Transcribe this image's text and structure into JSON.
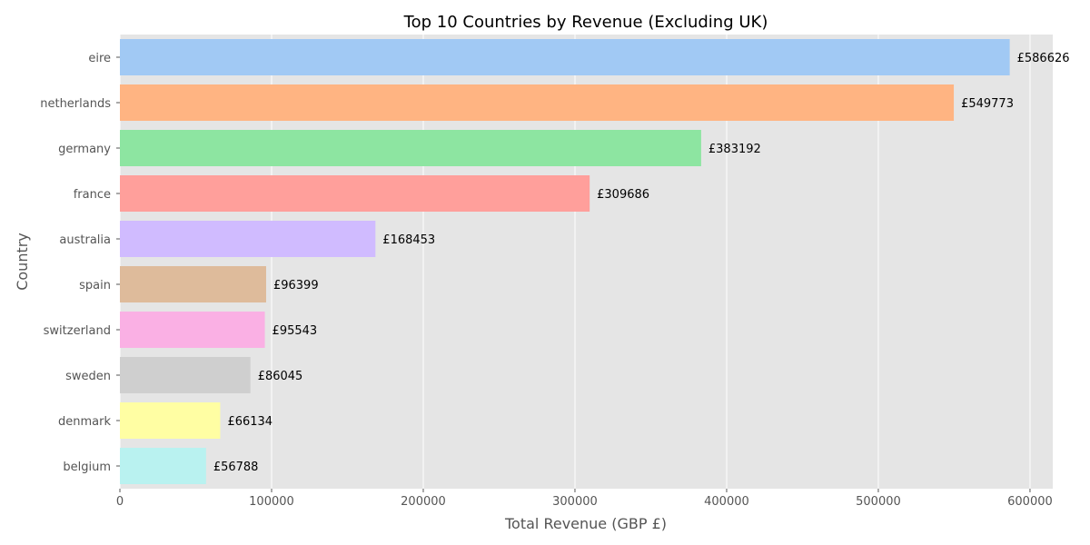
{
  "chart_data": {
    "type": "bar",
    "orientation": "horizontal",
    "title": "Top 10 Countries by Revenue (Excluding UK)",
    "xlabel": "Total Revenue (GBP £)",
    "ylabel": "Country",
    "xlim": [
      0,
      615000
    ],
    "xticks": [
      0,
      100000,
      200000,
      300000,
      400000,
      500000,
      600000
    ],
    "xtick_labels": [
      "0",
      "100000",
      "200000",
      "300000",
      "400000",
      "500000",
      "600000"
    ],
    "grid": true,
    "categories": [
      "eire",
      "netherlands",
      "germany",
      "france",
      "australia",
      "spain",
      "switzerland",
      "sweden",
      "denmark",
      "belgium"
    ],
    "values": [
      586626,
      549773,
      383192,
      309686,
      168453,
      96399,
      95543,
      86045,
      66134,
      56788
    ],
    "data_labels": [
      "£586626",
      "£549773",
      "£383192",
      "£309686",
      "£168453",
      "£96399",
      "£95543",
      "£86045",
      "£66134",
      "£56788"
    ],
    "colors": [
      "#a1c9f4",
      "#ffb482",
      "#8de5a1",
      "#ff9f9b",
      "#d0bbff",
      "#debb9b",
      "#fab0e4",
      "#cfcfcf",
      "#fffea3",
      "#b9f2f0"
    ],
    "background": "#e5e5e5"
  }
}
